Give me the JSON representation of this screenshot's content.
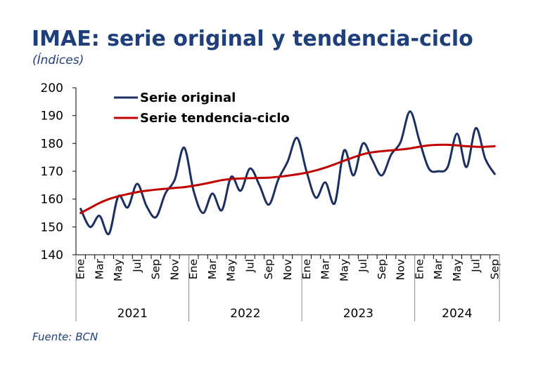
{
  "title": "IMAE: serie original y tendencia-ciclo",
  "subtitle": "(Índices)",
  "source": "Fuente: BCN",
  "colors": {
    "title": "#1f3f7a",
    "original": "#1b2f63",
    "trend": "#c00000"
  },
  "chart_data": {
    "type": "line",
    "title": "IMAE: serie original y tendencia-ciclo",
    "ylabel": "",
    "xlabel": "",
    "ylim": [
      140,
      200
    ],
    "yticks": [
      140,
      150,
      160,
      170,
      180,
      190,
      200
    ],
    "legend_position": "top-left",
    "grid": false,
    "month_labels": [
      "Ene",
      "",
      "Mar",
      "",
      "May",
      "",
      "Jul",
      "",
      "Sep",
      "",
      "Nov",
      "",
      "Ene",
      "",
      "Mar",
      "",
      "May",
      "",
      "Jul",
      "",
      "Sep",
      "",
      "Nov",
      "",
      "Ene",
      "",
      "Mar",
      "",
      "May",
      "",
      "Jul",
      "",
      "Sep",
      "",
      "Nov",
      "",
      "Ene",
      "",
      "Mar",
      "",
      "May",
      "",
      "Jul",
      "",
      "Sep"
    ],
    "years": [
      {
        "label": "2021",
        "months": 12
      },
      {
        "label": "2022",
        "months": 12
      },
      {
        "label": "2023",
        "months": 12
      },
      {
        "label": "2024",
        "months": 9
      }
    ],
    "series": [
      {
        "name": "Serie original",
        "color": "#1b2f63",
        "values": [
          156.5,
          150.0,
          154.0,
          147.5,
          161.0,
          157.0,
          165.5,
          157.5,
          153.5,
          162.0,
          167.0,
          178.5,
          163.0,
          155.0,
          162.0,
          156.0,
          168.0,
          163.0,
          171.0,
          165.0,
          158.0,
          167.0,
          173.5,
          182.0,
          170.0,
          160.5,
          166.0,
          158.5,
          177.5,
          168.5,
          180.0,
          174.0,
          168.5,
          176.0,
          180.5,
          191.5,
          181.0,
          171.0,
          170.0,
          171.5,
          183.5,
          171.5,
          185.5,
          174.5,
          169.0
        ]
      },
      {
        "name": "Serie tendencia-ciclo",
        "color": "#c00000",
        "values": [
          155.0,
          156.8,
          158.6,
          160.0,
          161.0,
          161.8,
          162.5,
          163.0,
          163.4,
          163.7,
          164.0,
          164.3,
          164.8,
          165.4,
          166.1,
          166.8,
          167.2,
          167.4,
          167.5,
          167.6,
          167.7,
          168.0,
          168.4,
          168.9,
          169.5,
          170.3,
          171.3,
          172.5,
          173.8,
          175.0,
          176.1,
          176.8,
          177.2,
          177.5,
          177.8,
          178.2,
          178.8,
          179.3,
          179.5,
          179.5,
          179.3,
          179.0,
          178.8,
          178.8,
          179.0
        ]
      }
    ]
  }
}
